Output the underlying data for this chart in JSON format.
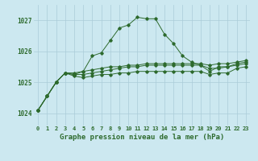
{
  "background_color": "#cce8f0",
  "line_color": "#2d6a2d",
  "grid_color": "#aaccd8",
  "title": "Graphe pression niveau de la mer (hPa)",
  "title_fontsize": 6.5,
  "xlim": [
    -0.5,
    23.5
  ],
  "ylim": [
    1023.6,
    1027.5
  ],
  "yticks": [
    1024,
    1025,
    1026,
    1027
  ],
  "xtick_labels": [
    "0",
    "1",
    "2",
    "3",
    "4",
    "5",
    "6",
    "7",
    "8",
    "9",
    "10",
    "11",
    "12",
    "13",
    "14",
    "15",
    "16",
    "17",
    "18",
    "19",
    "20",
    "21",
    "22",
    "23"
  ],
  "series": [
    [
      1024.1,
      1024.55,
      1025.0,
      1025.3,
      1025.25,
      1025.35,
      1025.85,
      1025.95,
      1026.35,
      1026.75,
      1026.85,
      1027.1,
      1027.05,
      1027.05,
      1026.55,
      1026.25,
      1025.85,
      1025.65,
      1025.55,
      1025.35,
      1025.5,
      1025.5,
      1025.6,
      1025.65
    ],
    [
      1024.1,
      1024.55,
      1025.0,
      1025.3,
      1025.3,
      1025.35,
      1025.4,
      1025.45,
      1025.5,
      1025.5,
      1025.55,
      1025.55,
      1025.6,
      1025.6,
      1025.6,
      1025.6,
      1025.6,
      1025.6,
      1025.6,
      1025.55,
      1025.6,
      1025.6,
      1025.65,
      1025.7
    ],
    [
      1024.1,
      1024.55,
      1025.0,
      1025.3,
      1025.25,
      1025.25,
      1025.3,
      1025.35,
      1025.4,
      1025.45,
      1025.5,
      1025.5,
      1025.55,
      1025.55,
      1025.55,
      1025.55,
      1025.55,
      1025.55,
      1025.55,
      1025.45,
      1025.45,
      1025.5,
      1025.55,
      1025.6
    ],
    [
      1024.1,
      1024.55,
      1025.0,
      1025.3,
      1025.2,
      1025.15,
      1025.2,
      1025.25,
      1025.25,
      1025.3,
      1025.3,
      1025.35,
      1025.35,
      1025.35,
      1025.35,
      1025.35,
      1025.35,
      1025.35,
      1025.35,
      1025.25,
      1025.3,
      1025.3,
      1025.45,
      1025.5
    ]
  ]
}
